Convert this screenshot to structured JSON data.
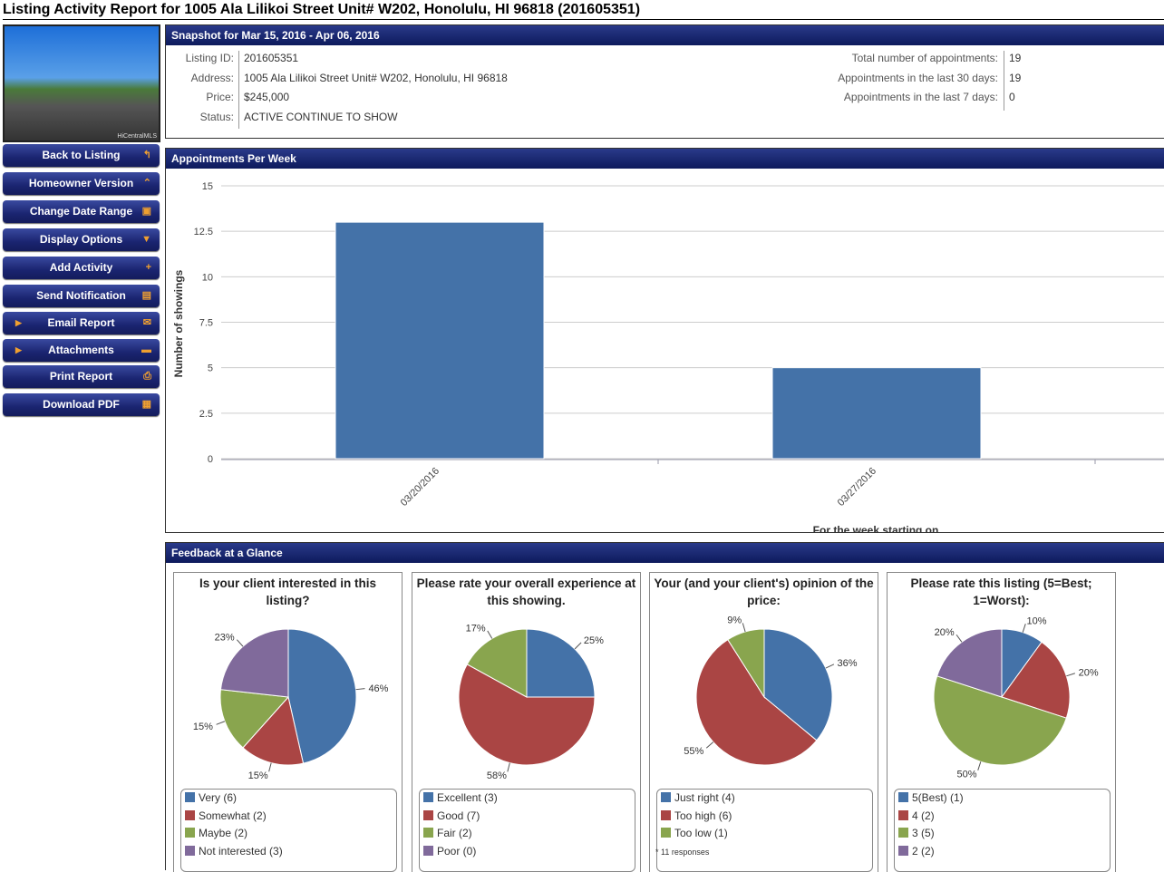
{
  "title": "Listing Activity Report for 1005 Ala Lilikoi Street Unit# W202, Honolulu, HI 96818 (201605351)",
  "photo_watermark": "HiCentralMLS",
  "sidebar": {
    "buttons": [
      {
        "label": "Back to Listing",
        "icon": "back-arrow-icon",
        "glyph": "↰"
      },
      {
        "label": "Homeowner Version",
        "icon": "chevron-up-icon",
        "glyph": "⌃"
      },
      {
        "label": "Change Date Range",
        "icon": "calendar-icon",
        "glyph": "▣"
      },
      {
        "label": "Display Options",
        "icon": "caret-down-icon",
        "glyph": "▼"
      },
      {
        "label": "Add Activity",
        "icon": "plus-icon",
        "glyph": "+"
      },
      {
        "label": "Send Notification",
        "icon": "message-icon",
        "glyph": "▤"
      },
      {
        "label": "Email Report",
        "icon": "envelope-icon",
        "glyph": "✉",
        "expand": true
      },
      {
        "label": "Attachments",
        "icon": "folder-icon",
        "glyph": "▬",
        "expand": true
      },
      {
        "label": "Print Report",
        "icon": "printer-icon",
        "glyph": "⎙"
      },
      {
        "label": "Download PDF",
        "icon": "save-icon",
        "glyph": "▦"
      }
    ]
  },
  "snapshot": {
    "header": "Snapshot for Mar 15, 2016 - Apr 06, 2016",
    "left": [
      {
        "k": "Listing ID:",
        "v": "201605351"
      },
      {
        "k": "Address:",
        "v": "1005 Ala Lilikoi Street Unit# W202, Honolulu, HI 96818"
      },
      {
        "k": "Price:",
        "v": "$245,000"
      },
      {
        "k": "Status:",
        "v": "ACTIVE CONTINUE TO SHOW"
      }
    ],
    "right": [
      {
        "k": "Total number of appointments:",
        "v": "19"
      },
      {
        "k": "Appointments in the last 30 days:",
        "v": "19"
      },
      {
        "k": "Appointments in the last 7 days:",
        "v": "0"
      }
    ]
  },
  "appointments": {
    "header": "Appointments Per Week"
  },
  "chart_data": [
    {
      "type": "bar",
      "categories": [
        "03/20/2016",
        "03/27/2016"
      ],
      "values": [
        13,
        5
      ],
      "xlabel": "For the week starting on",
      "ylabel": "Number of showings",
      "ylim": [
        0,
        15
      ],
      "yticks": [
        "0",
        "2.5",
        "5",
        "7.5",
        "10",
        "12.5",
        "15"
      ],
      "grid": true,
      "color": "#4472a8"
    },
    {
      "type": "pie",
      "title": "Is your client interested in this listing?",
      "slices": [
        {
          "label": "Very (6)",
          "value": 46,
          "pct": "46%"
        },
        {
          "label": "Somewhat (2)",
          "value": 15,
          "pct": "15%"
        },
        {
          "label": "Maybe (2)",
          "value": 15,
          "pct": "15%"
        },
        {
          "label": "Not interested (3)",
          "value": 23,
          "pct": "23%"
        }
      ]
    },
    {
      "type": "pie",
      "title": "Please rate your overall experience at this showing.",
      "slices": [
        {
          "label": "Excellent (3)",
          "value": 25,
          "pct": "25%"
        },
        {
          "label": "Good (7)",
          "value": 58,
          "pct": "58%"
        },
        {
          "label": "Fair (2)",
          "value": 17,
          "pct": "17%"
        },
        {
          "label": "Poor (0)",
          "value": 0,
          "pct": ""
        }
      ]
    },
    {
      "type": "pie",
      "title": "Your (and your client's) opinion of the price:",
      "slices": [
        {
          "label": "Just right (4)",
          "value": 36,
          "pct": "36%"
        },
        {
          "label": "Too high (6)",
          "value": 55,
          "pct": "55%"
        },
        {
          "label": "Too low (1)",
          "value": 9,
          "pct": "9%"
        }
      ],
      "note": "* 11 responses"
    },
    {
      "type": "pie",
      "title": "Please rate this listing (5=Best; 1=Worst):",
      "slices": [
        {
          "label": "5(Best) (1)",
          "value": 10,
          "pct": "10%"
        },
        {
          "label": "4 (2)",
          "value": 20,
          "pct": "20%"
        },
        {
          "label": "3 (5)",
          "value": 50,
          "pct": "50%"
        },
        {
          "label": "2 (2)",
          "value": 20,
          "pct": "20%"
        }
      ]
    }
  ],
  "feedback": {
    "header": "Feedback at a Glance"
  },
  "colors": [
    "#4472a8",
    "#aa4544",
    "#89a54e",
    "#806a9b"
  ]
}
